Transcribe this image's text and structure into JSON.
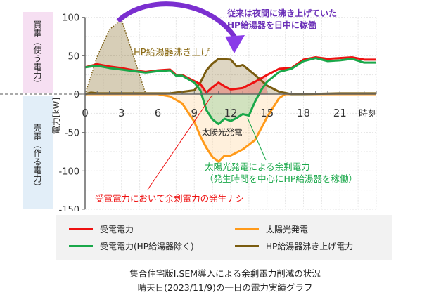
{
  "side_labels": {
    "buy": "買電（使う電力）",
    "sell": "売電（作る電力）"
  },
  "colors": {
    "received": "#ee1111",
    "received_ex_hp": "#1aa84a",
    "solar": "#ff9a1a",
    "hp": "#7a5c10",
    "annotation_purple": "#7b2fd0"
  },
  "annotations": {
    "hp_boil": "HP給湯器沸き上げ",
    "shift_line1": "従来は夜間に沸き上げていた",
    "shift_line2": "HP給湯器を日中に稼働",
    "solar": "太陽光発電",
    "surplus_line1": "太陽光発電による余剰電力",
    "surplus_line2": "（発生時間を中心にHP給湯器を稼働）",
    "no_surplus": "受電電力において余剰電力の発生ナシ"
  },
  "chart_data": {
    "type": "line",
    "ylabel": "電力[kW]",
    "xlabel": "時刻",
    "xlim": [
      0,
      24
    ],
    "ylim": [
      -150,
      100
    ],
    "xticks": [
      "0",
      "3",
      "6",
      "9",
      "12",
      "15",
      "18",
      "21"
    ],
    "yticks": [
      "100",
      "50",
      "0",
      "-50",
      "-100",
      "-150"
    ],
    "grid": true,
    "legend_position": "bottom",
    "series": [
      {
        "name": "受電電力",
        "color": "#ee1111",
        "points": [
          [
            0,
            35
          ],
          [
            1,
            39
          ],
          [
            2,
            36
          ],
          [
            3,
            34
          ],
          [
            4,
            31
          ],
          [
            5,
            29
          ],
          [
            6,
            31
          ],
          [
            7,
            32
          ],
          [
            7.5,
            25
          ],
          [
            8,
            25
          ],
          [
            9,
            17
          ],
          [
            9.5,
            13
          ],
          [
            10,
            2
          ],
          [
            10.5,
            9
          ],
          [
            11,
            15
          ],
          [
            11.5,
            10
          ],
          [
            12,
            6
          ],
          [
            13,
            8
          ],
          [
            14,
            16
          ],
          [
            15,
            25
          ],
          [
            16,
            33
          ],
          [
            17,
            34
          ],
          [
            18,
            45
          ],
          [
            19,
            48
          ],
          [
            20,
            46
          ],
          [
            21,
            47
          ],
          [
            22,
            48
          ],
          [
            23,
            45
          ],
          [
            24,
            45
          ]
        ]
      },
      {
        "name": "受電電力(HP給湯器除く)",
        "color": "#1aa84a",
        "points": [
          [
            0,
            35
          ],
          [
            1,
            37
          ],
          [
            2,
            34
          ],
          [
            3,
            32
          ],
          [
            4,
            30
          ],
          [
            5,
            28
          ],
          [
            6,
            30
          ],
          [
            7,
            31
          ],
          [
            7.5,
            24
          ],
          [
            8,
            24
          ],
          [
            9,
            15
          ],
          [
            9.5,
            5
          ],
          [
            10,
            -21
          ],
          [
            10.5,
            -33
          ],
          [
            11,
            -39
          ],
          [
            11.5,
            -32
          ],
          [
            12,
            -35
          ],
          [
            12.5,
            -31
          ],
          [
            13,
            -26
          ],
          [
            13.5,
            -28
          ],
          [
            14,
            -10
          ],
          [
            14.5,
            5
          ],
          [
            15,
            16
          ],
          [
            16,
            29
          ],
          [
            17,
            33
          ],
          [
            18,
            43
          ],
          [
            19,
            47
          ],
          [
            20,
            43
          ],
          [
            21,
            44
          ],
          [
            22,
            46
          ],
          [
            23,
            41
          ],
          [
            24,
            41
          ]
        ]
      },
      {
        "name": "太陽光発電",
        "color": "#ff9a1a",
        "points": [
          [
            0,
            0
          ],
          [
            6,
            0
          ],
          [
            7,
            -3
          ],
          [
            8,
            -12
          ],
          [
            9,
            -36
          ],
          [
            9.5,
            -55
          ],
          [
            10,
            -70
          ],
          [
            10.5,
            -82
          ],
          [
            11,
            -88
          ],
          [
            11.5,
            -80
          ],
          [
            12,
            -80
          ],
          [
            13,
            -72
          ],
          [
            14,
            -60
          ],
          [
            15,
            -30
          ],
          [
            16,
            -5
          ],
          [
            16.5,
            0
          ],
          [
            24,
            0
          ]
        ]
      },
      {
        "name": "HP給湯器沸き上げ電力",
        "color": "#7a5c10",
        "points": [
          [
            0,
            0
          ],
          [
            0.5,
            2
          ],
          [
            1,
            1
          ],
          [
            6,
            1
          ],
          [
            7,
            1
          ],
          [
            8,
            3
          ],
          [
            9,
            5
          ],
          [
            9.5,
            15
          ],
          [
            10,
            31
          ],
          [
            10.5,
            40
          ],
          [
            11,
            46
          ],
          [
            12,
            45
          ],
          [
            12.5,
            36
          ],
          [
            13,
            38
          ],
          [
            14,
            25
          ],
          [
            15,
            11
          ],
          [
            16,
            3
          ],
          [
            17,
            0
          ],
          [
            18,
            0
          ],
          [
            21,
            1
          ],
          [
            24,
            1
          ]
        ]
      },
      {
        "name": "",
        "color": "#7a5c10",
        "style": "dotted-fill",
        "points": [
          [
            0,
            0
          ],
          [
            1,
            49
          ],
          [
            2,
            84
          ],
          [
            3,
            97
          ],
          [
            4,
            49
          ],
          [
            5,
            0
          ]
        ]
      }
    ]
  },
  "legend": [
    "受電電力",
    "太陽光発電",
    "受電電力(HP給湯器除く)",
    "HP給湯器沸き上げ電力"
  ],
  "caption": {
    "line1": "集合住宅版I.SEM導入による余剰電力削減の状況",
    "line2": "晴天日(2023/11/9)の一日の電力実績グラフ"
  }
}
